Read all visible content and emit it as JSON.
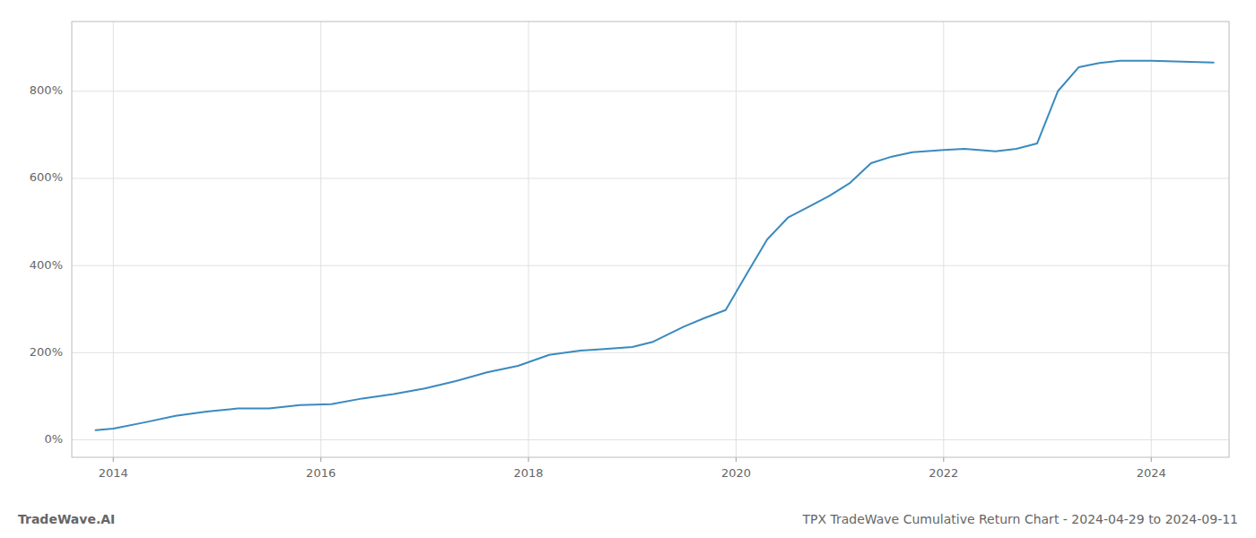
{
  "chart_data": {
    "type": "line",
    "title": "TradeWave.AI",
    "subtitle": "TPX TradeWave Cumulative Return Chart - 2024-04-29 to 2024-09-11",
    "x": [
      2013.83,
      2014.0,
      2014.3,
      2014.6,
      2014.9,
      2015.2,
      2015.5,
      2015.8,
      2016.1,
      2016.4,
      2016.7,
      2017.0,
      2017.3,
      2017.6,
      2017.9,
      2018.2,
      2018.5,
      2018.7,
      2019.0,
      2019.2,
      2019.5,
      2019.7,
      2019.9,
      2020.1,
      2020.3,
      2020.5,
      2020.7,
      2020.9,
      2021.1,
      2021.3,
      2021.5,
      2021.7,
      2022.0,
      2022.2,
      2022.5,
      2022.7,
      2022.9,
      2023.1,
      2023.3,
      2023.5,
      2023.7,
      2024.0,
      2024.3,
      2024.6
    ],
    "values": [
      22,
      26,
      40,
      55,
      65,
      72,
      72,
      80,
      82,
      95,
      105,
      118,
      135,
      155,
      170,
      195,
      205,
      208,
      213,
      225,
      260,
      280,
      298,
      380,
      460,
      510,
      535,
      560,
      590,
      635,
      650,
      660,
      665,
      668,
      662,
      668,
      680,
      800,
      855,
      865,
      870,
      870,
      868,
      866
    ],
    "color": "#3a8abf",
    "xlim": [
      2013.6,
      2024.75
    ],
    "ylim": [
      -40,
      960
    ],
    "xticks": [
      2014,
      2016,
      2018,
      2020,
      2022,
      2024
    ],
    "yticks": [
      {
        "value": 0,
        "label": "0%"
      },
      {
        "value": 200,
        "label": "200%"
      },
      {
        "value": 400,
        "label": "400%"
      },
      {
        "value": 600,
        "label": "600%"
      },
      {
        "value": 800,
        "label": "800%"
      }
    ],
    "grid": true
  }
}
